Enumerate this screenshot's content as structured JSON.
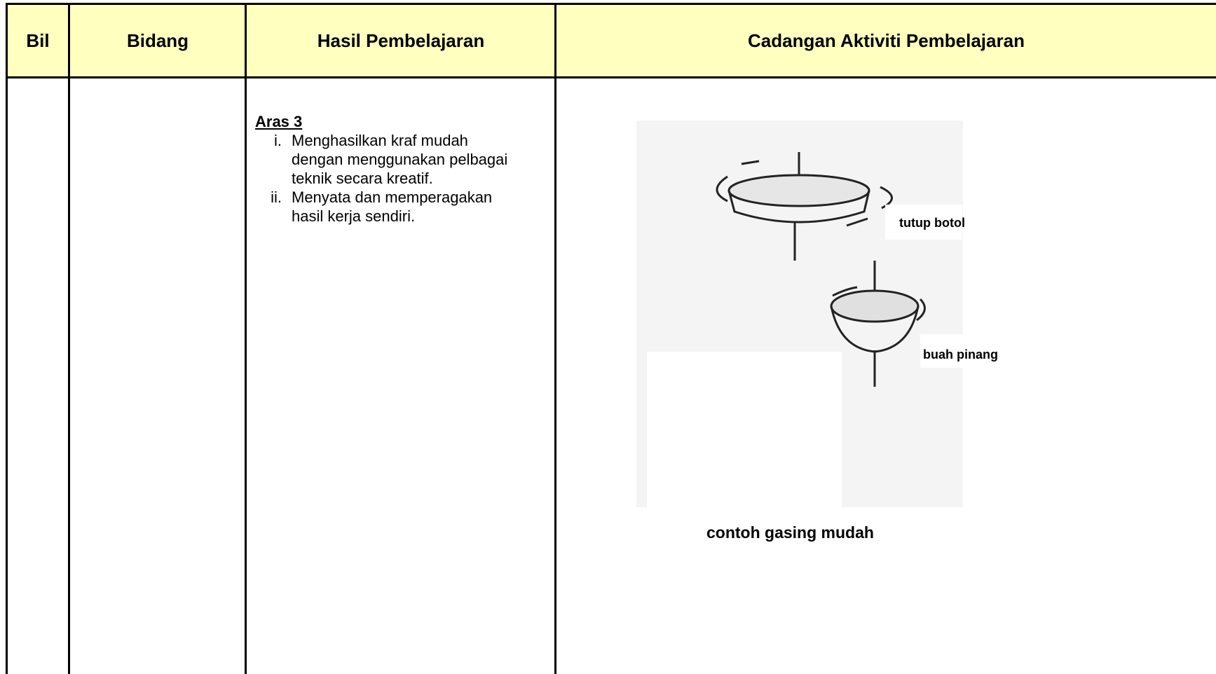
{
  "table": {
    "headers": [
      "Bil",
      "Bidang",
      "Hasil Pembelajaran",
      "Cadangan Aktiviti Pembelajaran"
    ],
    "rows": [
      {
        "outcome": {
          "title": "Aras 3",
          "items": [
            {
              "num": "i.",
              "text": "Menghasilkan kraf mudah dengan menggunakan pelbagai teknik secara kreatif."
            },
            {
              "num": "ii.",
              "text": "Menyata dan memperagakan hasil kerja sendiri."
            }
          ]
        },
        "activity": {
          "labels": [
            "tutup botol",
            "buah pinang"
          ],
          "caption": "contoh gasing mudah"
        }
      }
    ]
  }
}
